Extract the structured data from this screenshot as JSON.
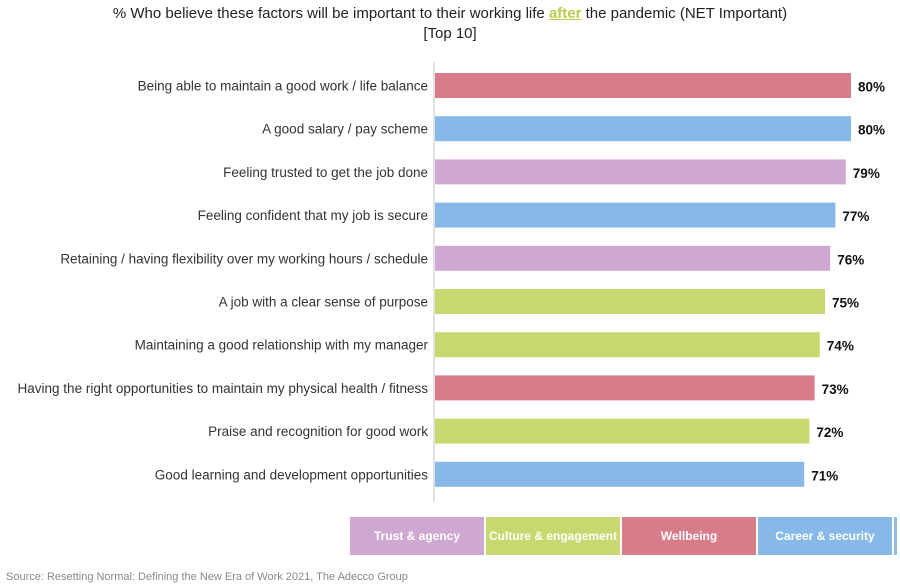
{
  "header": {
    "title_before": "% Who believe these factors will be important to their working life ",
    "title_highlight": "after",
    "title_after": " the pandemic (NET Important)",
    "subtitle": "[Top 10]"
  },
  "chart_data": {
    "type": "bar",
    "orientation": "horizontal",
    "title": "% Who believe these factors will be important to their working life after the pandemic (NET Important)",
    "subtitle": "[Top 10]",
    "categories": [
      "Being able to maintain a good work / life balance",
      "A good salary / pay scheme",
      "Feeling trusted to get the job done",
      "Feeling confident that my job is secure",
      "Retaining / having flexibility over my working hours / schedule",
      "A job with a clear sense of purpose",
      "Maintaining a good relationship with my manager",
      "Having the right opportunities to maintain my physical health / fitness",
      "Praise and recognition for good work",
      "Good learning and development opportunities"
    ],
    "values": [
      80,
      80,
      79,
      77,
      76,
      75,
      74,
      73,
      72,
      71
    ],
    "value_labels": [
      "80%",
      "80%",
      "79%",
      "77%",
      "76%",
      "75%",
      "74%",
      "73%",
      "72%",
      "71%"
    ],
    "groups": [
      "Wellbeing",
      "Career & security",
      "Trust & agency",
      "Career & security",
      "Trust & agency",
      "Culture & engagement",
      "Culture & engagement",
      "Wellbeing",
      "Culture & engagement",
      "Career & security"
    ],
    "colors": {
      "Trust & agency": "#cea8d0",
      "Culture & engagement": "#c7d86e",
      "Wellbeing": "#d97c89",
      "Career & security": "#86b9e8"
    },
    "xlim": [
      0,
      80
    ],
    "grid": false,
    "legend_position": "bottom-right"
  },
  "legend": {
    "items": [
      {
        "label": "Trust & agency",
        "color": "#cea8d0"
      },
      {
        "label": "Culture & engagement",
        "color": "#c7d86e"
      },
      {
        "label": "Wellbeing",
        "color": "#d97c89"
      },
      {
        "label": "Career & security",
        "color": "#86b9e8"
      }
    ]
  },
  "source": "Source: Resetting Normal: Defining the New Era of Work 2021, The Adecco Group"
}
